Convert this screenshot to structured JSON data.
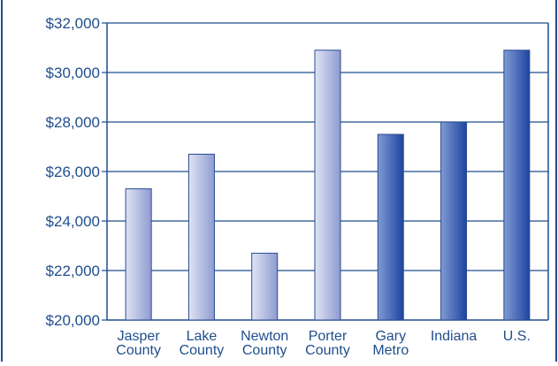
{
  "chart_data": {
    "type": "bar",
    "title": "",
    "xlabel": "",
    "ylabel": "",
    "categories": [
      [
        "Jasper",
        "County"
      ],
      [
        "Lake",
        "County"
      ],
      [
        "Newton",
        "County"
      ],
      [
        "Porter",
        "County"
      ],
      [
        "Gary",
        "Metro"
      ],
      [
        "Indiana"
      ],
      [
        "U.S."
      ]
    ],
    "values": [
      25300,
      26700,
      22700,
      30900,
      27500,
      28000,
      30900
    ],
    "bar_styles": [
      "light",
      "light",
      "light",
      "light",
      "dark",
      "dark",
      "dark"
    ],
    "ylim": [
      20000,
      32000
    ],
    "yticks": [
      20000,
      22000,
      24000,
      26000,
      28000,
      30000,
      32000
    ],
    "ytick_labels": [
      "$20,000",
      "$22,000",
      "$24,000",
      "$26,000",
      "$28,000",
      "$30,000",
      "$32,000"
    ],
    "grid": true,
    "legend": "none"
  },
  "colors": {
    "axis_and_grid": "#1f4e8c",
    "text": "#1f4e8c",
    "light_bar_start": "#dfe4f4",
    "light_bar_end": "#8e9bd0",
    "dark_bar_start": "#7f9bd3",
    "dark_bar_end": "#1e44a0",
    "bar_outline": "#2a4a8f"
  }
}
